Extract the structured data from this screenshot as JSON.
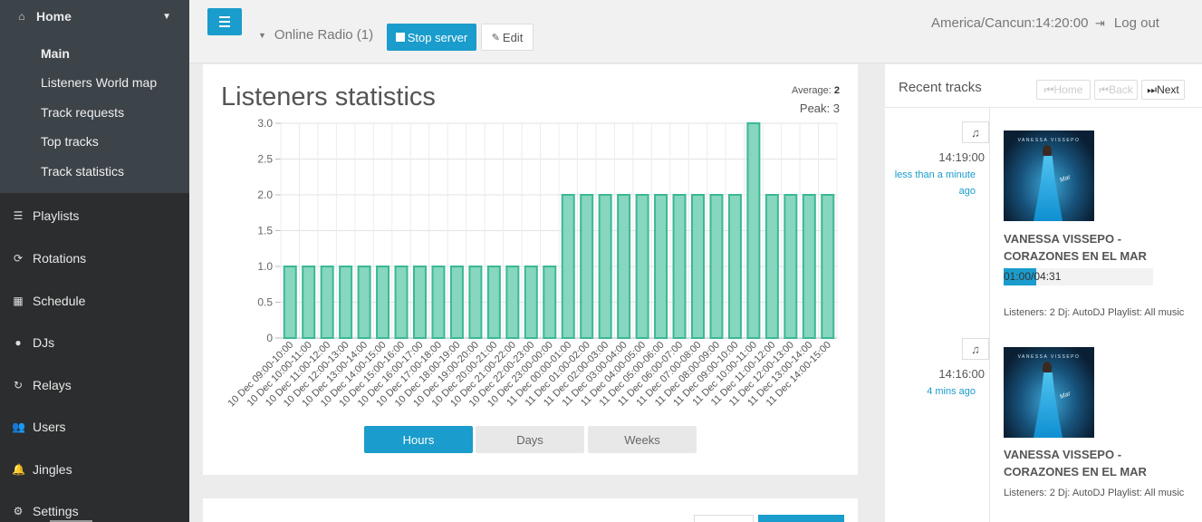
{
  "sidebar": {
    "home_label": "Home",
    "sub_items": [
      "Main",
      "Listeners World map",
      "Track requests",
      "Top tracks",
      "Track statistics"
    ],
    "nav_items": [
      {
        "label": "Playlists",
        "icon": "list-icon",
        "glyph": "☰"
      },
      {
        "label": "Rotations",
        "icon": "refresh-icon",
        "glyph": "⟳"
      },
      {
        "label": "Schedule",
        "icon": "calendar-icon",
        "glyph": "▦"
      },
      {
        "label": "DJs",
        "icon": "user-icon",
        "glyph": "●"
      },
      {
        "label": "Relays",
        "icon": "relay-icon",
        "glyph": "↻"
      },
      {
        "label": "Users",
        "icon": "users-icon",
        "glyph": "👥"
      },
      {
        "label": "Jingles",
        "icon": "bell-icon",
        "glyph": "🔔"
      },
      {
        "label": "Settings",
        "icon": "gear-icon",
        "glyph": "⚙"
      }
    ]
  },
  "topbar": {
    "radio_label": "Online Radio (1)",
    "stop_label": "Stop server",
    "edit_label": "Edit",
    "timezone": "America/Cancun:14:20:00",
    "logout_label": "Log out"
  },
  "stats": {
    "title": "Listeners statistics",
    "average_label": "Average:",
    "average_value": "2",
    "peak_text": "Peak: 3",
    "range_buttons": [
      "Hours",
      "Days",
      "Weeks"
    ],
    "active_range": "Hours"
  },
  "recent": {
    "title": "Recent tracks",
    "home_label": "Home",
    "back_label": "Back",
    "next_label": "Next",
    "tracks": [
      {
        "time": "14:19:00",
        "ago": "less than a minute ago",
        "title": "VANESSA VISSEPO - CORAZONES EN EL MAR",
        "progress_text": "01:00/04:31",
        "progress_fraction": 0.221,
        "info": "Listeners: 2 Dj: AutoDJ Playlist: All music"
      },
      {
        "time": "14:16:00",
        "ago": "4 mins ago",
        "title": "VANESSA VISSEPO - CORAZONES EN EL MAR",
        "info": "Listeners: 2 Dj: AutoDJ Playlist: All music"
      }
    ]
  },
  "colors": {
    "accent": "#1a9ccc",
    "bar_fill": "#86d6c0",
    "bar_stroke": "#3bb894",
    "sidebar": "#2b2d2e"
  },
  "chart_data": {
    "type": "bar",
    "title": "Listeners statistics",
    "xlabel": "",
    "ylabel": "",
    "ylim": [
      0,
      3
    ],
    "yticks": [
      "0",
      "0.5",
      "1.0",
      "1.5",
      "2.0",
      "2.5",
      "3.0"
    ],
    "categories": [
      "10 Dec 09:00-10:00",
      "10 Dec 10:00-11:00",
      "10 Dec 11:00-12:00",
      "10 Dec 12:00-13:00",
      "10 Dec 13:00-14:00",
      "10 Dec 14:00-15:00",
      "10 Dec 15:00-16:00",
      "10 Dec 16:00-17:00",
      "10 Dec 17:00-18:00",
      "10 Dec 18:00-19:00",
      "10 Dec 19:00-20:00",
      "10 Dec 20:00-21:00",
      "10 Dec 21:00-22:00",
      "10 Dec 22:00-23:00",
      "10 Dec 23:00-00:00",
      "11 Dec 00:00-01:00",
      "11 Dec 01:00-02:00",
      "11 Dec 02:00-03:00",
      "11 Dec 03:00-04:00",
      "11 Dec 04:00-05:00",
      "11 Dec 05:00-06:00",
      "11 Dec 06:00-07:00",
      "11 Dec 07:00-08:00",
      "11 Dec 08:00-09:00",
      "11 Dec 09:00-10:00",
      "11 Dec 10:00-11:00",
      "11 Dec 11:00-12:00",
      "11 Dec 12:00-13:00",
      "11 Dec 13:00-14:00",
      "11 Dec 14:00-15:00"
    ],
    "values": [
      1,
      1,
      1,
      1,
      1,
      1,
      1,
      1,
      1,
      1,
      1,
      1,
      1,
      1,
      1,
      2,
      2,
      2,
      2,
      2,
      2,
      2,
      2,
      2,
      2,
      3,
      2,
      2,
      2,
      2
    ]
  }
}
